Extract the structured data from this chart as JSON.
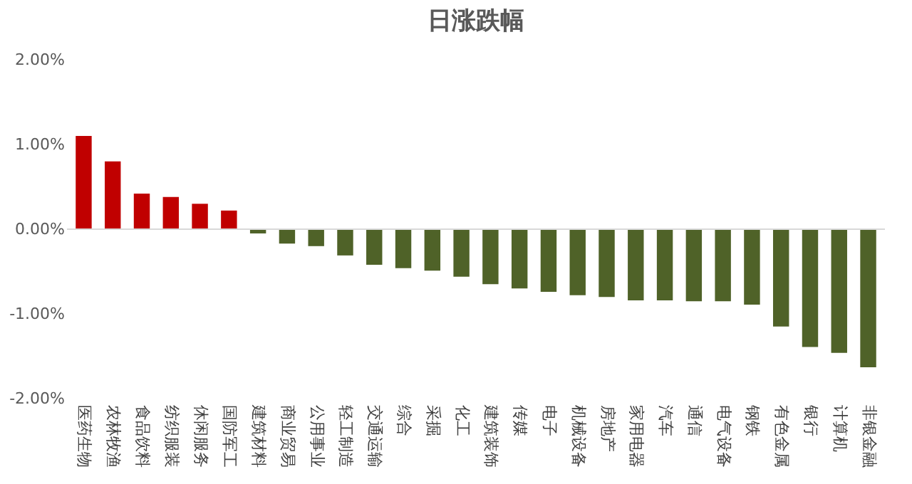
{
  "chart_data": {
    "type": "bar",
    "title": "日涨跌幅",
    "categories": [
      "医药生物",
      "农林牧渔",
      "食品饮料",
      "纺织服装",
      "休闲服务",
      "国防军工",
      "建筑材料",
      "商业贸易",
      "公用事业",
      "轻工制造",
      "交通运输",
      "综合",
      "采掘",
      "化工",
      "建筑装饰",
      "传媒",
      "电子",
      "机械设备",
      "房地产",
      "家用电器",
      "汽车",
      "通信",
      "电气设备",
      "钢铁",
      "有色金属",
      "银行",
      "计算机",
      "非银金融"
    ],
    "values": [
      1.1,
      0.8,
      0.42,
      0.38,
      0.3,
      0.22,
      -0.05,
      -0.17,
      -0.2,
      -0.31,
      -0.42,
      -0.46,
      -0.49,
      -0.56,
      -0.65,
      -0.7,
      -0.74,
      -0.78,
      -0.8,
      -0.84,
      -0.84,
      -0.85,
      -0.85,
      -0.89,
      -1.15,
      -1.39,
      -1.46,
      -1.63
    ],
    "colors": [
      "#c00000",
      "#c00000",
      "#c00000",
      "#c00000",
      "#c00000",
      "#c00000",
      "#4f6228",
      "#4f6228",
      "#4f6228",
      "#4f6228",
      "#4f6228",
      "#4f6228",
      "#4f6228",
      "#4f6228",
      "#4f6228",
      "#4f6228",
      "#4f6228",
      "#4f6228",
      "#4f6228",
      "#4f6228",
      "#4f6228",
      "#4f6228",
      "#4f6228",
      "#4f6228",
      "#4f6228",
      "#4f6228",
      "#4f6228",
      "#4f6228"
    ],
    "ylim": [
      -2,
      2
    ],
    "yticks": [
      {
        "value": -2,
        "label": "-2.00%"
      },
      {
        "value": -1,
        "label": "-1.00%"
      },
      {
        "value": 0,
        "label": "0.00%"
      },
      {
        "value": 1,
        "label": "1.00%"
      },
      {
        "value": 2,
        "label": "2.00%"
      }
    ],
    "ref_lines": [
      {
        "axis": "y",
        "value": 0,
        "color": "#d9d9d9"
      }
    ]
  }
}
